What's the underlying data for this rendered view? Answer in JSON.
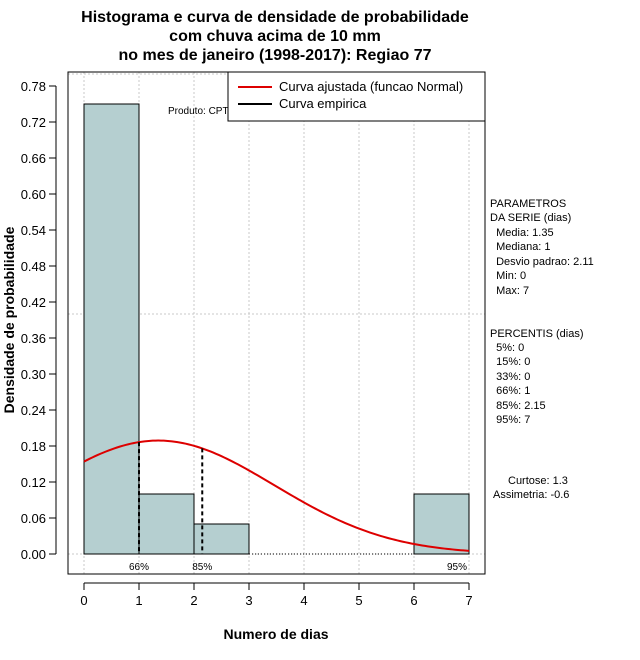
{
  "chart_data": {
    "type": "histogram",
    "title": [
      "Histograma e curva de densidade de probabilidade",
      "com chuva acima de 10 mm",
      "no mes de janeiro (1998-2017): Regiao 77"
    ],
    "xlabel": "Numero de dias",
    "ylabel": "Densidade de probabilidade",
    "xlim": [
      -0.3,
      7.3
    ],
    "ylim": [
      0,
      0.8
    ],
    "x_ticks": [
      0,
      1,
      2,
      3,
      4,
      5,
      6,
      7
    ],
    "y_ticks": [
      0.0,
      0.06,
      0.12,
      0.18,
      0.24,
      0.3,
      0.36,
      0.42,
      0.48,
      0.54,
      0.6,
      0.66,
      0.72,
      0.78
    ],
    "y_tick_labels": [
      "0.00",
      "0.06",
      "0.12",
      "0.18",
      "0.24",
      "0.30",
      "0.36",
      "0.42",
      "0.48",
      "0.54",
      "0.60",
      "0.66",
      "0.72",
      "0.78"
    ],
    "bins": [
      {
        "from": 0,
        "to": 1,
        "density": 0.75
      },
      {
        "from": 1,
        "to": 2,
        "density": 0.1
      },
      {
        "from": 2,
        "to": 3,
        "density": 0.05
      },
      {
        "from": 3,
        "to": 4,
        "density": 0
      },
      {
        "from": 4,
        "to": 5,
        "density": 0
      },
      {
        "from": 5,
        "to": 6,
        "density": 0
      },
      {
        "from": 6,
        "to": 7,
        "density": 0.1
      }
    ],
    "normal_curve": {
      "mean": 1.35,
      "sd": 2.11,
      "x_from": 0,
      "x_to": 7
    },
    "percentile_lines": [
      {
        "x": 1,
        "label": "66%"
      },
      {
        "x": 2.15,
        "label": "85%"
      },
      {
        "x": 7,
        "label": "95%"
      }
    ],
    "bar_color": "#b5cfd0",
    "curve_color": "#dd0000",
    "legend": [
      {
        "label": "Curva ajustada (funcao Normal)",
        "color": "#dd0000"
      },
      {
        "label": "Curva empirica",
        "color": "#000000"
      }
    ],
    "annotation": "Produto: CPTEC/INPE"
  },
  "stats": {
    "parametros": [
      "PARAMETROS",
      "DA SERIE (dias)",
      "  Media: 1.35",
      "  Mediana: 1",
      "  Desvio padrao: 2.11",
      "  Min: 0",
      "  Max: 7"
    ],
    "percentis": [
      "PERCENTIS (dias)",
      "  5%: 0",
      "  15%: 0",
      "  33%: 0",
      "  66%: 1",
      "  85%: 2.15",
      "  95%: 7"
    ],
    "curtose": "Curtose: 1.3",
    "assimetria": "Assimetria: -0.6"
  }
}
